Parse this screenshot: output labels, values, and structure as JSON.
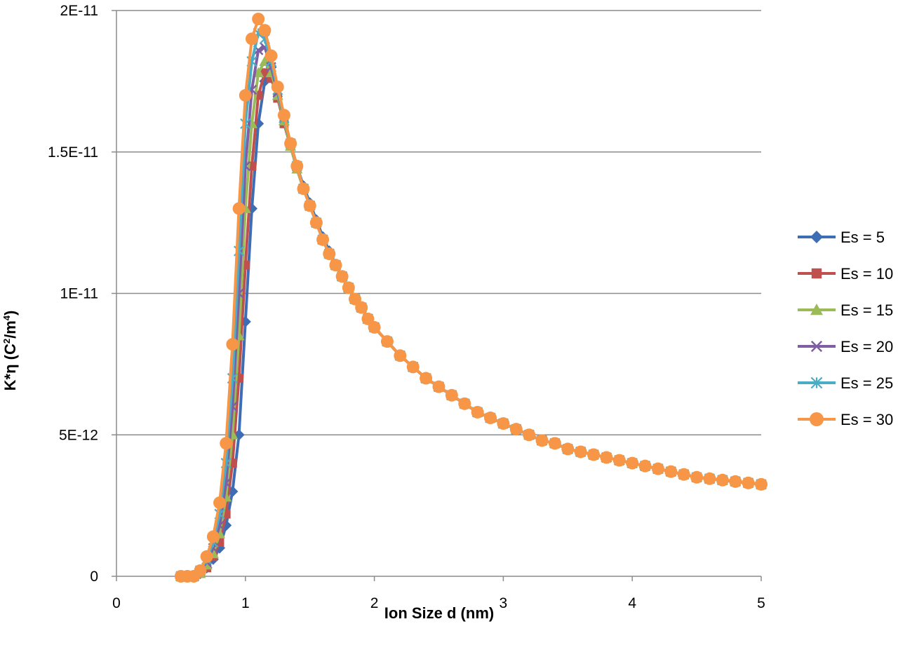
{
  "chart_data": {
    "type": "line",
    "title": "",
    "xlabel": "Ion Size d (nm)",
    "ylabel_main": "K*η (C",
    "ylabel_sup1": "2",
    "ylabel_mid": "/m",
    "ylabel_sup2": "4",
    "ylabel_end": ")",
    "xlim": [
      0,
      5
    ],
    "ylim": [
      0,
      2e-11
    ],
    "x_ticks": [
      0,
      1,
      2,
      3,
      4,
      5
    ],
    "x_tick_labels": [
      "0",
      "1",
      "2",
      "3",
      "4",
      "5"
    ],
    "y_ticks": [
      0,
      5e-12,
      1e-11,
      1.5e-11,
      2e-11
    ],
    "y_tick_labels": [
      "0",
      "5E-12",
      "1E-11",
      "1.5E-11",
      "2E-11"
    ],
    "grid": "horizontal",
    "legend_position": "right",
    "x": [
      0.5,
      0.55,
      0.6,
      0.65,
      0.7,
      0.75,
      0.8,
      0.85,
      0.9,
      0.95,
      1.0,
      1.05,
      1.1,
      1.15,
      1.2,
      1.25,
      1.3,
      1.35,
      1.4,
      1.45,
      1.5,
      1.55,
      1.6,
      1.65,
      1.7,
      1.75,
      1.8,
      1.85,
      1.9,
      1.95,
      2.0,
      2.1,
      2.2,
      2.3,
      2.4,
      2.5,
      2.6,
      2.7,
      2.8,
      2.9,
      3.0,
      3.1,
      3.2,
      3.3,
      3.4,
      3.5,
      3.6,
      3.7,
      3.8,
      3.9,
      4.0,
      4.1,
      4.2,
      4.3,
      4.4,
      4.5,
      4.6,
      4.7,
      4.8,
      4.9,
      5.0
    ],
    "series": [
      {
        "name": "Es = 5",
        "color": "#3D6DB5",
        "marker": "diamond",
        "values": [
          0,
          0,
          0,
          1e-13,
          3e-13,
          6e-13,
          1e-12,
          1.8e-12,
          3e-12,
          5e-12,
          9e-12,
          1.3e-11,
          1.6e-11,
          1.75e-11,
          1.8e-11,
          1.72e-11,
          1.62e-11,
          1.53e-11,
          1.45e-11,
          1.38e-11,
          1.32e-11,
          1.26e-11,
          1.2e-11,
          1.15e-11,
          1.1e-11,
          1.06e-11,
          1.02e-11,
          9.8e-12,
          9.5e-12,
          9.1e-12,
          8.8e-12,
          8.3e-12,
          7.8e-12,
          7.4e-12,
          7e-12,
          6.7e-12,
          6.4e-12,
          6.1e-12,
          5.8e-12,
          5.6e-12,
          5.4e-12,
          5.2e-12,
          5e-12,
          4.8e-12,
          4.7e-12,
          4.5e-12,
          4.4e-12,
          4.3e-12,
          4.2e-12,
          4.1e-12,
          4e-12,
          3.9e-12,
          3.8e-12,
          3.7e-12,
          3.6e-12,
          3.5e-12,
          3.45e-12,
          3.4e-12,
          3.35e-12,
          3.3e-12,
          3.25e-12
        ]
      },
      {
        "name": "Es = 10",
        "color": "#C0504D",
        "marker": "square",
        "values": [
          0,
          0,
          0,
          1e-13,
          3e-13,
          7e-13,
          1.2e-12,
          2.2e-12,
          4e-12,
          7e-12,
          1.1e-11,
          1.45e-11,
          1.7e-11,
          1.78e-11,
          1.76e-11,
          1.69e-11,
          1.6e-11,
          1.52e-11,
          1.44e-11,
          1.37e-11,
          1.31e-11,
          1.25e-11,
          1.19e-11,
          1.14e-11,
          1.1e-11,
          1.06e-11,
          1.02e-11,
          9.8e-12,
          9.5e-12,
          9.1e-12,
          8.8e-12,
          8.3e-12,
          7.8e-12,
          7.4e-12,
          7e-12,
          6.7e-12,
          6.4e-12,
          6.1e-12,
          5.8e-12,
          5.6e-12,
          5.4e-12,
          5.2e-12,
          5e-12,
          4.8e-12,
          4.7e-12,
          4.5e-12,
          4.4e-12,
          4.3e-12,
          4.2e-12,
          4.1e-12,
          4e-12,
          3.9e-12,
          3.8e-12,
          3.7e-12,
          3.6e-12,
          3.5e-12,
          3.45e-12,
          3.4e-12,
          3.35e-12,
          3.3e-12,
          3.25e-12
        ]
      },
      {
        "name": "Es = 15",
        "color": "#9BBB59",
        "marker": "triangle",
        "values": [
          0,
          0,
          0,
          1e-13,
          4e-13,
          8e-13,
          1.5e-12,
          2.8e-12,
          5e-12,
          8.5e-12,
          1.3e-11,
          1.6e-11,
          1.78e-11,
          1.82e-11,
          1.78e-11,
          1.7e-11,
          1.61e-11,
          1.52e-11,
          1.44e-11,
          1.37e-11,
          1.31e-11,
          1.25e-11,
          1.19e-11,
          1.14e-11,
          1.1e-11,
          1.06e-11,
          1.02e-11,
          9.8e-12,
          9.5e-12,
          9.1e-12,
          8.8e-12,
          8.3e-12,
          7.8e-12,
          7.4e-12,
          7e-12,
          6.7e-12,
          6.4e-12,
          6.1e-12,
          5.8e-12,
          5.6e-12,
          5.4e-12,
          5.2e-12,
          5e-12,
          4.8e-12,
          4.7e-12,
          4.5e-12,
          4.4e-12,
          4.3e-12,
          4.2e-12,
          4.1e-12,
          4e-12,
          3.9e-12,
          3.8e-12,
          3.7e-12,
          3.6e-12,
          3.5e-12,
          3.45e-12,
          3.4e-12,
          3.35e-12,
          3.3e-12,
          3.25e-12
        ]
      },
      {
        "name": "Es = 20",
        "color": "#7F5FA3",
        "marker": "x",
        "values": [
          0,
          0,
          0,
          2e-13,
          5e-13,
          1e-12,
          1.8e-12,
          3.3e-12,
          6e-12,
          1e-11,
          1.45e-11,
          1.72e-11,
          1.86e-11,
          1.87e-11,
          1.8e-11,
          1.71e-11,
          1.62e-11,
          1.53e-11,
          1.45e-11,
          1.37e-11,
          1.31e-11,
          1.25e-11,
          1.19e-11,
          1.14e-11,
          1.1e-11,
          1.06e-11,
          1.02e-11,
          9.8e-12,
          9.5e-12,
          9.1e-12,
          8.8e-12,
          8.3e-12,
          7.8e-12,
          7.4e-12,
          7e-12,
          6.7e-12,
          6.4e-12,
          6.1e-12,
          5.8e-12,
          5.6e-12,
          5.4e-12,
          5.2e-12,
          5e-12,
          4.8e-12,
          4.7e-12,
          4.5e-12,
          4.4e-12,
          4.3e-12,
          4.2e-12,
          4.1e-12,
          4e-12,
          3.9e-12,
          3.8e-12,
          3.7e-12,
          3.6e-12,
          3.5e-12,
          3.45e-12,
          3.4e-12,
          3.35e-12,
          3.3e-12,
          3.25e-12
        ]
      },
      {
        "name": "Es = 25",
        "color": "#4BACC6",
        "marker": "asterisk",
        "values": [
          0,
          0,
          0,
          2e-13,
          6e-13,
          1.2e-12,
          2.2e-12,
          4e-12,
          7e-12,
          1.15e-11,
          1.6e-11,
          1.82e-11,
          1.92e-11,
          1.9e-11,
          1.82e-11,
          1.72e-11,
          1.62e-11,
          1.53e-11,
          1.45e-11,
          1.37e-11,
          1.31e-11,
          1.25e-11,
          1.19e-11,
          1.14e-11,
          1.1e-11,
          1.06e-11,
          1.02e-11,
          9.8e-12,
          9.5e-12,
          9.1e-12,
          8.8e-12,
          8.3e-12,
          7.8e-12,
          7.4e-12,
          7e-12,
          6.7e-12,
          6.4e-12,
          6.1e-12,
          5.8e-12,
          5.6e-12,
          5.4e-12,
          5.2e-12,
          5e-12,
          4.8e-12,
          4.7e-12,
          4.5e-12,
          4.4e-12,
          4.3e-12,
          4.2e-12,
          4.1e-12,
          4e-12,
          3.9e-12,
          3.8e-12,
          3.7e-12,
          3.6e-12,
          3.5e-12,
          3.45e-12,
          3.4e-12,
          3.35e-12,
          3.3e-12,
          3.25e-12
        ]
      },
      {
        "name": "Es = 30",
        "color": "#F79646",
        "marker": "circle",
        "values": [
          0,
          0,
          0,
          2e-13,
          7e-13,
          1.4e-12,
          2.6e-12,
          4.7e-12,
          8.2e-12,
          1.3e-11,
          1.7e-11,
          1.9e-11,
          1.97e-11,
          1.93e-11,
          1.84e-11,
          1.73e-11,
          1.63e-11,
          1.53e-11,
          1.45e-11,
          1.37e-11,
          1.31e-11,
          1.25e-11,
          1.19e-11,
          1.14e-11,
          1.1e-11,
          1.06e-11,
          1.02e-11,
          9.8e-12,
          9.5e-12,
          9.1e-12,
          8.8e-12,
          8.3e-12,
          7.8e-12,
          7.4e-12,
          7e-12,
          6.7e-12,
          6.4e-12,
          6.1e-12,
          5.8e-12,
          5.6e-12,
          5.4e-12,
          5.2e-12,
          5e-12,
          4.8e-12,
          4.7e-12,
          4.5e-12,
          4.4e-12,
          4.3e-12,
          4.2e-12,
          4.1e-12,
          4e-12,
          3.9e-12,
          3.8e-12,
          3.7e-12,
          3.6e-12,
          3.5e-12,
          3.45e-12,
          3.4e-12,
          3.35e-12,
          3.3e-12,
          3.25e-12
        ]
      }
    ]
  }
}
